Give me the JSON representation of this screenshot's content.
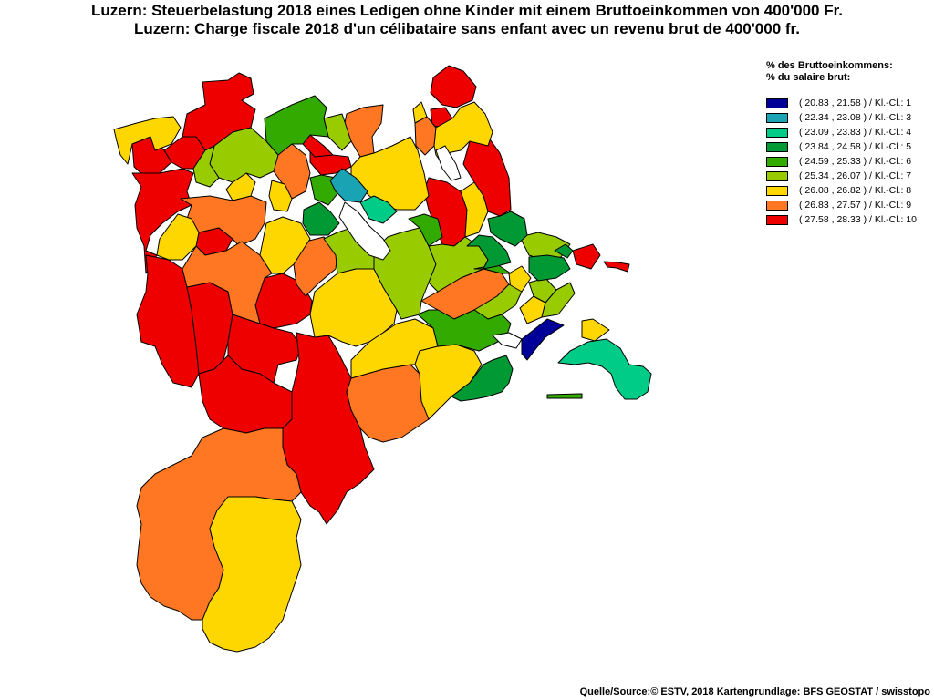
{
  "title_de": "Luzern: Steuerbelastung 2018 eines Ledigen ohne Kinder mit einem Bruttoeinkommen von 400'000 Fr.",
  "title_fr": "Luzern: Charge fiscale 2018 d'un célibataire sans enfant avec un revenu brut de 400'000 fr.",
  "legend": {
    "title_de": "% des Bruttoeinkommens:",
    "title_fr": "% du salaire brut:",
    "classes": [
      {
        "label": "( 20.83 , 21.58 ) / Kl.-Cl.: 1",
        "color": "#000099"
      },
      {
        "label": "( 22.34 , 23.08 ) / Kl.-Cl.: 3",
        "color": "#1aa3b3"
      },
      {
        "label": "( 23.09 , 23.83 ) / Kl.-Cl.: 4",
        "color": "#00cc88"
      },
      {
        "label": "( 23.84 , 24.58 ) / Kl.-Cl.: 5",
        "color": "#009933"
      },
      {
        "label": "( 24.59 , 25.33 ) / Kl.-Cl.: 6",
        "color": "#33aa00"
      },
      {
        "label": "( 25.34 , 26.07 ) / Kl.-Cl.: 7",
        "color": "#99cc00"
      },
      {
        "label": "( 26.08 , 26.82 ) / Kl.-Cl.: 8",
        "color": "#ffd700"
      },
      {
        "label": "( 26.83 , 27.57 ) / Kl.-Cl.: 9",
        "color": "#ff7722"
      },
      {
        "label": "( 27.58 , 28.33 ) / Kl.-Cl.: 10",
        "color": "#ee0000"
      }
    ]
  },
  "source": "Quelle/Source:© ESTV, 2018 Kartengrundlage: BFS GEOSTAT / swisstopo"
}
